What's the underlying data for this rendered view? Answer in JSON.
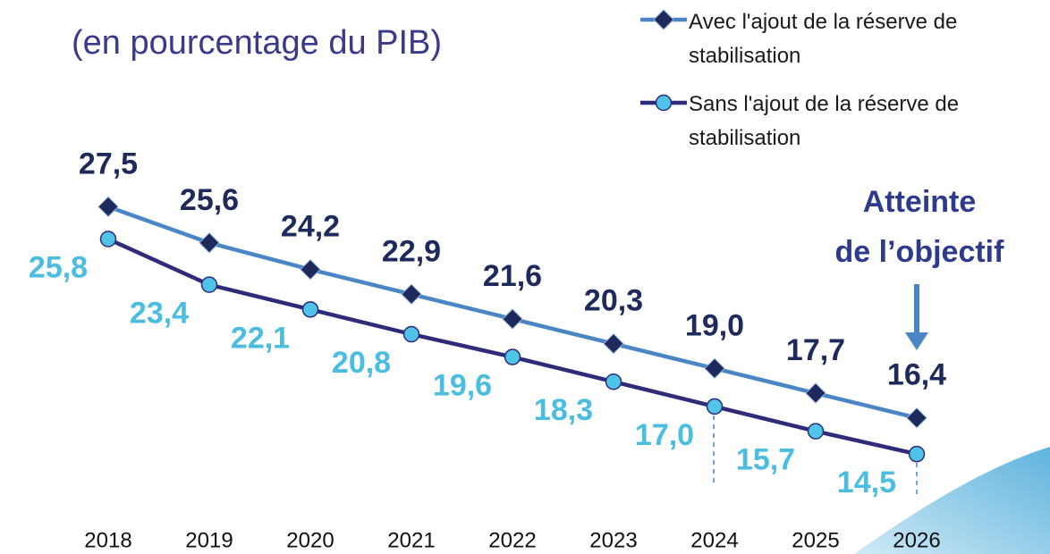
{
  "chart_data": {
    "type": "line",
    "title": "(en pourcentage du PIB)",
    "categories": [
      "2018",
      "2019",
      "2020",
      "2021",
      "2022",
      "2023",
      "2024",
      "2025",
      "2026"
    ],
    "series": [
      {
        "name": "Avec l'ajout de la réserve de stabilisation",
        "color": "#4a86c5",
        "marker": "diamond",
        "marker_color": "#1f2a5c",
        "label_color": "#1f2a5c",
        "values": [
          27.5,
          25.6,
          24.2,
          22.9,
          21.6,
          20.3,
          19.0,
          17.7,
          16.4
        ],
        "value_labels": [
          "27,5",
          "25,6",
          "24,2",
          "22,9",
          "21,6",
          "20,3",
          "19,0",
          "17,7",
          "16,4"
        ]
      },
      {
        "name": "Sans l'ajout de la réserve de stabilisation",
        "color": "#2e2b7a",
        "marker": "circle",
        "marker_color": "#4fc3e8",
        "label_color": "#4bbde0",
        "values": [
          25.8,
          23.4,
          22.1,
          20.8,
          19.6,
          18.3,
          17.0,
          15.7,
          14.5
        ],
        "value_labels": [
          "25,8",
          "23,4",
          "22,1",
          "20,8",
          "19,6",
          "18,3",
          "17,0",
          "15,7",
          "14,5"
        ]
      }
    ],
    "ylim": [
      10,
      37
    ],
    "annotation": [
      "Atteinte",
      "de l’objectif"
    ]
  }
}
